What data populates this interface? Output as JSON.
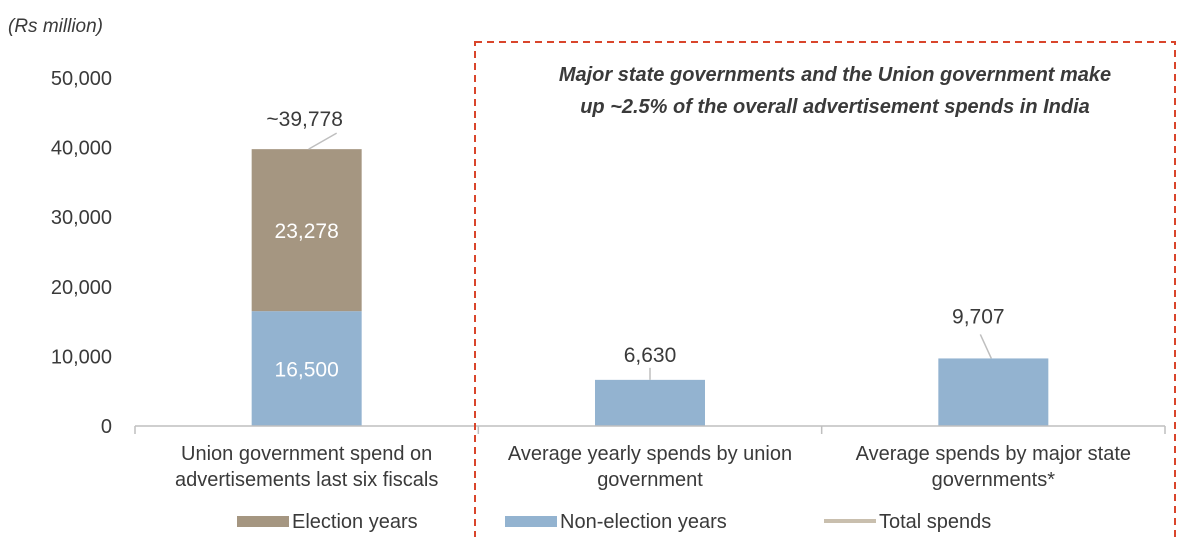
{
  "unit_label": "(Rs million)",
  "annotation": {
    "line1": "Major state governments and the Union government make",
    "line2": "up ~2.5% of the overall advertisement spends in India"
  },
  "colors": {
    "election": "#a59681",
    "non_election": "#93b3d0",
    "total": "#c9bfae",
    "dashed_box": "#d9452b",
    "axis": "#bfbfbf",
    "text": "#3a3a3a"
  },
  "chart_data": {
    "type": "bar",
    "stacked": true,
    "ylim": [
      0,
      50000
    ],
    "yticks": [
      0,
      10000,
      20000,
      30000,
      40000,
      50000
    ],
    "ytick_labels": [
      "0",
      "10,000",
      "20,000",
      "30,000",
      "40,000",
      "50,000"
    ],
    "categories": [
      [
        "Union government spend on",
        "advertisements last six fiscals"
      ],
      [
        "Average yearly spends by union",
        "government"
      ],
      [
        "Average spends by major state",
        "governments*"
      ]
    ],
    "series": [
      {
        "name": "Non-election years",
        "values": [
          16500,
          6630,
          9707
        ],
        "labels": [
          "16,500",
          "",
          ""
        ]
      },
      {
        "name": "Election years",
        "values": [
          23278,
          0,
          0
        ],
        "labels": [
          "23,278",
          "",
          ""
        ]
      }
    ],
    "totals": {
      "name": "Total spends",
      "labels": [
        "~39,778",
        "6,630",
        "9,707"
      ]
    },
    "legend": [
      "Election years",
      "Non-election years",
      "Total spends"
    ],
    "legend_position": "bottom",
    "grid": false
  }
}
